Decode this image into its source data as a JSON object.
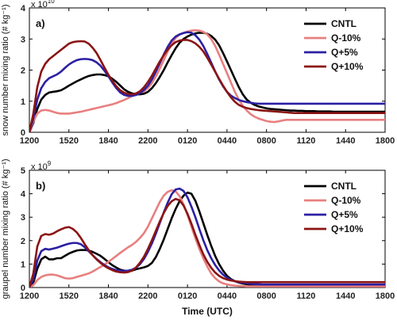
{
  "colors": {
    "CNTL": "#000000",
    "Q-10%": "#e87f7f",
    "Q+5%": "#2b1fa3",
    "Q+10%": "#8b1414"
  },
  "chart_data": [
    {
      "type": "line",
      "panel_label": "a)",
      "ylabel": "snow number mixing ratio (# kg⁻¹)",
      "multiplier_base": "x 10",
      "multiplier_exp": "10",
      "xlabel": "",
      "xticks": [
        "1200",
        "1520",
        "1840",
        "2200",
        "0120",
        "0440",
        "0800",
        "1120",
        "1440",
        "1800"
      ],
      "ylim": [
        0,
        4
      ],
      "yticks": [
        "0",
        "1",
        "2",
        "3",
        "4"
      ],
      "legend_position": "top-right",
      "x": [
        0,
        1,
        2,
        3,
        4,
        5,
        6,
        7,
        8,
        9,
        10,
        11,
        12,
        13,
        14,
        15,
        16,
        17,
        18,
        19,
        20,
        21,
        22,
        23,
        24,
        25,
        26,
        27,
        28,
        29,
        30,
        31,
        32,
        33,
        34,
        35,
        36,
        37,
        38,
        39,
        40,
        41,
        42,
        43,
        44,
        45,
        46,
        47,
        48,
        49,
        50,
        51,
        52,
        53,
        54,
        55,
        56,
        57,
        58,
        59,
        60,
        61,
        62,
        63,
        64,
        65,
        66,
        67,
        68,
        69,
        70,
        71,
        72,
        73,
        74,
        75,
        76,
        77,
        78,
        79,
        80,
        81,
        82,
        83,
        84,
        85,
        86,
        87,
        88,
        89,
        90
      ],
      "series": [
        {
          "name": "CNTL",
          "values": [
            0.0,
            0.3,
            0.75,
            1.05,
            1.2,
            1.28,
            1.3,
            1.32,
            1.35,
            1.42,
            1.5,
            1.57,
            1.64,
            1.7,
            1.76,
            1.81,
            1.84,
            1.86,
            1.86,
            1.84,
            1.8,
            1.72,
            1.62,
            1.5,
            1.38,
            1.3,
            1.25,
            1.22,
            1.22,
            1.24,
            1.3,
            1.42,
            1.58,
            1.78,
            2.0,
            2.25,
            2.48,
            2.7,
            2.88,
            3.0,
            3.08,
            3.14,
            3.18,
            3.2,
            3.2,
            3.17,
            3.1,
            2.98,
            2.8,
            2.55,
            2.28,
            2.0,
            1.72,
            1.45,
            1.22,
            1.05,
            0.95,
            0.88,
            0.83,
            0.8,
            0.77,
            0.75,
            0.74,
            0.73,
            0.72,
            0.71,
            0.7,
            0.7,
            0.69,
            0.69,
            0.68,
            0.68,
            0.68,
            0.67,
            0.67,
            0.67,
            0.67,
            0.66,
            0.66,
            0.66,
            0.66,
            0.66,
            0.66,
            0.66,
            0.66,
            0.66,
            0.66,
            0.66,
            0.66,
            0.66,
            0.66
          ]
        },
        {
          "name": "Q-10%",
          "values": [
            0.0,
            0.35,
            0.6,
            0.7,
            0.72,
            0.7,
            0.66,
            0.62,
            0.6,
            0.6,
            0.6,
            0.62,
            0.64,
            0.66,
            0.69,
            0.72,
            0.75,
            0.78,
            0.81,
            0.84,
            0.87,
            0.9,
            0.94,
            0.99,
            1.04,
            1.1,
            1.17,
            1.23,
            1.27,
            1.32,
            1.42,
            1.58,
            1.8,
            2.05,
            2.32,
            2.6,
            2.85,
            3.03,
            3.14,
            3.2,
            3.24,
            3.27,
            3.28,
            3.27,
            3.23,
            3.15,
            3.0,
            2.78,
            2.5,
            2.2,
            1.9,
            1.6,
            1.3,
            1.05,
            0.85,
            0.7,
            0.58,
            0.5,
            0.44,
            0.4,
            0.36,
            0.34,
            0.33,
            0.35,
            0.38,
            0.4,
            0.4,
            0.4,
            0.4,
            0.4,
            0.4,
            0.4,
            0.4,
            0.4,
            0.4,
            0.4,
            0.4,
            0.4,
            0.4,
            0.4,
            0.4,
            0.4,
            0.4,
            0.4,
            0.4,
            0.4,
            0.4,
            0.4,
            0.4,
            0.4,
            0.4
          ]
        },
        {
          "name": "Q+5%",
          "values": [
            0.0,
            0.45,
            1.05,
            1.42,
            1.62,
            1.74,
            1.8,
            1.86,
            1.95,
            2.07,
            2.18,
            2.26,
            2.32,
            2.35,
            2.36,
            2.35,
            2.32,
            2.25,
            2.14,
            1.98,
            1.8,
            1.6,
            1.42,
            1.28,
            1.2,
            1.17,
            1.17,
            1.2,
            1.26,
            1.36,
            1.5,
            1.7,
            1.95,
            2.22,
            2.5,
            2.75,
            2.95,
            3.08,
            3.15,
            3.19,
            3.22,
            3.2,
            3.12,
            2.98,
            2.78,
            2.52,
            2.24,
            1.96,
            1.7,
            1.48,
            1.3,
            1.18,
            1.1,
            1.04,
            1.0,
            0.97,
            0.95,
            0.93,
            0.92,
            0.92,
            0.92,
            0.92,
            0.92,
            0.92,
            0.92,
            0.92,
            0.92,
            0.92,
            0.92,
            0.92,
            0.92,
            0.92,
            0.92,
            0.92,
            0.92,
            0.92,
            0.92,
            0.92,
            0.92,
            0.92,
            0.92,
            0.92,
            0.92,
            0.92,
            0.92,
            0.92,
            0.92,
            0.92,
            0.92,
            0.92,
            0.92
          ]
        },
        {
          "name": "Q+10%",
          "values": [
            0.0,
            0.6,
            1.45,
            1.95,
            2.2,
            2.35,
            2.45,
            2.55,
            2.65,
            2.75,
            2.85,
            2.9,
            2.92,
            2.93,
            2.92,
            2.85,
            2.72,
            2.55,
            2.32,
            2.08,
            1.85,
            1.65,
            1.48,
            1.35,
            1.27,
            1.23,
            1.22,
            1.25,
            1.32,
            1.45,
            1.62,
            1.82,
            2.05,
            2.28,
            2.48,
            2.66,
            2.8,
            2.9,
            2.95,
            2.97,
            2.97,
            2.93,
            2.86,
            2.75,
            2.6,
            2.4,
            2.18,
            1.95,
            1.72,
            1.5,
            1.3,
            1.12,
            0.98,
            0.88,
            0.82,
            0.78,
            0.75,
            0.73,
            0.71,
            0.7,
            0.69,
            0.68,
            0.67,
            0.66,
            0.65,
            0.64,
            0.63,
            0.62,
            0.62,
            0.62,
            0.62,
            0.62,
            0.62,
            0.62,
            0.62,
            0.62,
            0.62,
            0.62,
            0.62,
            0.62,
            0.62,
            0.62,
            0.62,
            0.62,
            0.62,
            0.62,
            0.62,
            0.62,
            0.62,
            0.62,
            0.62
          ]
        }
      ]
    },
    {
      "type": "line",
      "panel_label": "b)",
      "ylabel": "graupel number mixing ratio (# kg⁻¹)",
      "multiplier_base": "x 10",
      "multiplier_exp": "9",
      "xlabel": "Time (UTC)",
      "xticks": [
        "1200",
        "1520",
        "1840",
        "2200",
        "0120",
        "0440",
        "0800",
        "1120",
        "1440",
        "1800"
      ],
      "ylim": [
        0,
        5
      ],
      "yticks": [
        "0",
        "1",
        "2",
        "3",
        "4",
        "5"
      ],
      "legend_position": "top-right",
      "x": [
        0,
        1,
        2,
        3,
        4,
        5,
        6,
        7,
        8,
        9,
        10,
        11,
        12,
        13,
        14,
        15,
        16,
        17,
        18,
        19,
        20,
        21,
        22,
        23,
        24,
        25,
        26,
        27,
        28,
        29,
        30,
        31,
        32,
        33,
        34,
        35,
        36,
        37,
        38,
        39,
        40,
        41,
        42,
        43,
        44,
        45,
        46,
        47,
        48,
        49,
        50,
        51,
        52,
        53,
        54,
        55,
        56,
        57,
        58,
        59,
        60,
        61,
        62,
        63,
        64,
        65,
        66,
        67,
        68,
        69,
        70,
        71,
        72,
        73,
        74,
        75,
        76,
        77,
        78,
        79,
        80,
        81,
        82,
        83,
        84,
        85,
        86,
        87,
        88,
        89,
        90
      ],
      "series": [
        {
          "name": "CNTL",
          "values": [
            0.0,
            0.2,
            0.8,
            1.2,
            1.32,
            1.2,
            1.2,
            1.25,
            1.25,
            1.35,
            1.45,
            1.52,
            1.58,
            1.6,
            1.6,
            1.58,
            1.52,
            1.44,
            1.35,
            1.22,
            1.08,
            0.95,
            0.85,
            0.76,
            0.72,
            0.7,
            0.72,
            0.78,
            0.82,
            0.86,
            0.92,
            1.05,
            1.3,
            1.65,
            2.05,
            2.5,
            2.95,
            3.35,
            3.68,
            3.92,
            4.05,
            4.0,
            3.7,
            3.25,
            2.75,
            2.25,
            1.78,
            1.35,
            1.0,
            0.72,
            0.5,
            0.36,
            0.27,
            0.21,
            0.17,
            0.14,
            0.12,
            0.1,
            0.09,
            0.08,
            0.08,
            0.08,
            0.08,
            0.08,
            0.08,
            0.08,
            0.08,
            0.08,
            0.08,
            0.08,
            0.08,
            0.08,
            0.08,
            0.08,
            0.08,
            0.08,
            0.08,
            0.08,
            0.08,
            0.08,
            0.08,
            0.08,
            0.08,
            0.08,
            0.08,
            0.08,
            0.08,
            0.08,
            0.08,
            0.08,
            0.08
          ]
        },
        {
          "name": "Q-10%",
          "values": [
            0.0,
            0.1,
            0.32,
            0.45,
            0.52,
            0.55,
            0.55,
            0.52,
            0.46,
            0.4,
            0.38,
            0.4,
            0.45,
            0.5,
            0.55,
            0.6,
            0.68,
            0.78,
            0.88,
            0.98,
            1.1,
            1.22,
            1.35,
            1.48,
            1.6,
            1.72,
            1.82,
            1.95,
            2.12,
            2.32,
            2.6,
            2.95,
            3.3,
            3.65,
            3.92,
            4.08,
            4.15,
            4.1,
            3.9,
            3.55,
            3.1,
            2.6,
            2.1,
            1.65,
            1.25,
            0.9,
            0.6,
            0.4,
            0.26,
            0.18,
            0.13,
            0.1,
            0.08,
            0.07,
            0.06,
            0.05,
            0.05,
            0.05,
            0.05,
            0.05,
            0.05,
            0.05,
            0.05,
            0.05,
            0.05,
            0.05,
            0.05,
            0.05,
            0.05,
            0.05,
            0.05,
            0.05,
            0.05,
            0.05,
            0.05,
            0.05,
            0.05,
            0.05,
            0.05,
            0.05,
            0.05,
            0.05,
            0.05,
            0.05,
            0.05,
            0.05,
            0.05,
            0.05,
            0.05,
            0.05,
            0.05
          ]
        },
        {
          "name": "Q+5%",
          "values": [
            0.0,
            0.35,
            1.15,
            1.55,
            1.65,
            1.62,
            1.66,
            1.7,
            1.76,
            1.82,
            1.87,
            1.9,
            1.9,
            1.85,
            1.72,
            1.55,
            1.38,
            1.22,
            1.08,
            0.96,
            0.86,
            0.79,
            0.74,
            0.72,
            0.71,
            0.72,
            0.76,
            0.85,
            1.0,
            1.22,
            1.52,
            1.88,
            2.3,
            2.75,
            3.2,
            3.62,
            3.98,
            4.18,
            4.22,
            4.12,
            3.85,
            3.45,
            3.0,
            2.5,
            2.02,
            1.6,
            1.25,
            0.96,
            0.73,
            0.55,
            0.42,
            0.33,
            0.27,
            0.23,
            0.2,
            0.18,
            0.16,
            0.15,
            0.14,
            0.13,
            0.13,
            0.13,
            0.13,
            0.13,
            0.13,
            0.13,
            0.13,
            0.13,
            0.13,
            0.13,
            0.13,
            0.13,
            0.13,
            0.13,
            0.13,
            0.13,
            0.13,
            0.13,
            0.13,
            0.13,
            0.13,
            0.13,
            0.13,
            0.13,
            0.13,
            0.13,
            0.13,
            0.13,
            0.13,
            0.13,
            0.13
          ]
        },
        {
          "name": "Q+10%",
          "values": [
            0.0,
            0.6,
            1.75,
            2.2,
            2.28,
            2.25,
            2.3,
            2.4,
            2.48,
            2.55,
            2.58,
            2.5,
            2.35,
            2.12,
            1.85,
            1.6,
            1.38,
            1.2,
            1.05,
            0.92,
            0.82,
            0.74,
            0.68,
            0.65,
            0.64,
            0.66,
            0.72,
            0.86,
            1.06,
            1.32,
            1.65,
            2.02,
            2.42,
            2.82,
            3.18,
            3.48,
            3.68,
            3.78,
            3.72,
            3.5,
            3.15,
            2.72,
            2.25,
            1.82,
            1.42,
            1.1,
            0.84,
            0.64,
            0.5,
            0.4,
            0.34,
            0.3,
            0.27,
            0.25,
            0.24,
            0.23,
            0.23,
            0.23,
            0.23,
            0.23,
            0.23,
            0.23,
            0.23,
            0.23,
            0.23,
            0.23,
            0.23,
            0.23,
            0.23,
            0.23,
            0.23,
            0.23,
            0.23,
            0.23,
            0.23,
            0.23,
            0.23,
            0.23,
            0.23,
            0.23,
            0.23,
            0.23,
            0.23,
            0.23,
            0.23,
            0.23,
            0.23,
            0.23,
            0.23,
            0.23,
            0.23
          ]
        }
      ]
    }
  ]
}
